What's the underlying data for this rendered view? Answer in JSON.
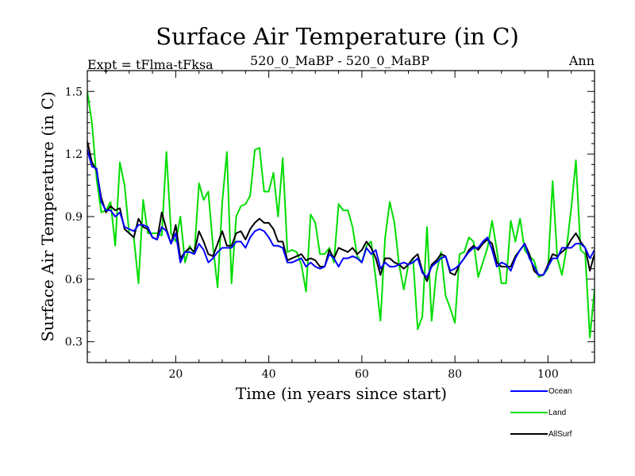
{
  "chart_data": {
    "type": "line",
    "title": "Surface Air Temperature (in C)",
    "subtitle_left": "Expt = tFlma-tFksa",
    "subtitle_center": "520_0_MaBP - 520_0_MaBP",
    "subtitle_right": "Ann",
    "xlabel": "Time (in years since start)",
    "ylabel": "Surface Air Temperature (in C)",
    "xlim": [
      1,
      110
    ],
    "ylim": [
      0.2,
      1.6
    ],
    "xticks": [
      20,
      40,
      60,
      80,
      100
    ],
    "xtick_labels": [
      "20",
      "40",
      "60",
      "80",
      "100"
    ],
    "yticks": [
      0.3,
      0.6,
      0.9,
      1.2,
      1.5
    ],
    "ytick_labels": [
      "0.3",
      "0.6",
      "0.9",
      "1.2",
      "1.5"
    ],
    "x_start": 1,
    "series": [
      {
        "name": "Ocean",
        "color": "#0000ff",
        "values": [
          1.22,
          1.14,
          1.13,
          0.97,
          0.93,
          0.93,
          0.9,
          0.92,
          0.85,
          0.84,
          0.83,
          0.86,
          0.86,
          0.85,
          0.8,
          0.79,
          0.85,
          0.83,
          0.77,
          0.82,
          0.68,
          0.73,
          0.73,
          0.72,
          0.77,
          0.74,
          0.68,
          0.7,
          0.73,
          0.75,
          0.75,
          0.75,
          0.78,
          0.78,
          0.75,
          0.8,
          0.83,
          0.84,
          0.83,
          0.8,
          0.76,
          0.76,
          0.75,
          0.68,
          0.68,
          0.69,
          0.7,
          0.66,
          0.68,
          0.66,
          0.65,
          0.66,
          0.72,
          0.7,
          0.66,
          0.7,
          0.7,
          0.71,
          0.7,
          0.68,
          0.75,
          0.72,
          0.74,
          0.65,
          0.68,
          0.66,
          0.66,
          0.67,
          0.68,
          0.67,
          0.68,
          0.7,
          0.63,
          0.61,
          0.66,
          0.68,
          0.7,
          0.71,
          0.64,
          0.65,
          0.67,
          0.7,
          0.73,
          0.75,
          0.75,
          0.78,
          0.8,
          0.74,
          0.66,
          0.68,
          0.67,
          0.64,
          0.7,
          0.74,
          0.77,
          0.7,
          0.66,
          0.62,
          0.62,
          0.66,
          0.7,
          0.7,
          0.75,
          0.75,
          0.75,
          0.77,
          0.77,
          0.75,
          0.7,
          0.74
        ]
      },
      {
        "name": "Land",
        "color": "#00dd00",
        "values": [
          1.5,
          1.35,
          1.08,
          0.92,
          0.93,
          0.97,
          0.76,
          1.16,
          1.05,
          0.82,
          0.8,
          0.58,
          0.98,
          0.82,
          0.82,
          0.82,
          0.81,
          1.21,
          0.82,
          0.78,
          0.9,
          0.68,
          0.76,
          0.72,
          1.06,
          0.98,
          1.02,
          0.76,
          0.56,
          0.97,
          1.21,
          0.58,
          0.9,
          0.95,
          0.96,
          1.0,
          1.22,
          1.23,
          1.02,
          1.02,
          1.11,
          0.9,
          1.18,
          0.73,
          0.74,
          0.73,
          0.67,
          0.54,
          0.91,
          0.87,
          0.72,
          0.72,
          0.75,
          0.68,
          0.96,
          0.93,
          0.93,
          0.85,
          0.71,
          0.68,
          0.76,
          0.78,
          0.6,
          0.4,
          0.8,
          0.97,
          0.87,
          0.67,
          0.55,
          0.67,
          0.7,
          0.36,
          0.42,
          0.85,
          0.4,
          0.63,
          0.73,
          0.52,
          0.46,
          0.39,
          0.72,
          0.73,
          0.8,
          0.78,
          0.61,
          0.68,
          0.75,
          0.88,
          0.74,
          0.58,
          0.58,
          0.88,
          0.78,
          0.89,
          0.74,
          0.71,
          0.69,
          0.61,
          0.62,
          0.65,
          1.07,
          0.7,
          0.62,
          0.75,
          0.94,
          1.17,
          0.74,
          0.72,
          0.32,
          0.55
        ]
      },
      {
        "name": "AllSurf",
        "color": "#000000",
        "values": [
          1.26,
          1.16,
          1.12,
          0.99,
          0.92,
          0.95,
          0.93,
          0.94,
          0.84,
          0.82,
          0.8,
          0.89,
          0.85,
          0.84,
          0.8,
          0.79,
          0.92,
          0.84,
          0.77,
          0.86,
          0.7,
          0.73,
          0.75,
          0.73,
          0.83,
          0.78,
          0.72,
          0.71,
          0.77,
          0.83,
          0.76,
          0.76,
          0.82,
          0.83,
          0.79,
          0.84,
          0.87,
          0.89,
          0.87,
          0.87,
          0.84,
          0.78,
          0.78,
          0.69,
          0.7,
          0.71,
          0.72,
          0.69,
          0.7,
          0.69,
          0.66,
          0.66,
          0.74,
          0.7,
          0.75,
          0.74,
          0.73,
          0.75,
          0.72,
          0.74,
          0.78,
          0.75,
          0.7,
          0.62,
          0.7,
          0.7,
          0.68,
          0.67,
          0.65,
          0.67,
          0.7,
          0.72,
          0.64,
          0.59,
          0.67,
          0.69,
          0.72,
          0.71,
          0.63,
          0.62,
          0.67,
          0.7,
          0.74,
          0.76,
          0.74,
          0.77,
          0.79,
          0.77,
          0.68,
          0.66,
          0.66,
          0.66,
          0.71,
          0.74,
          0.77,
          0.72,
          0.64,
          0.62,
          0.62,
          0.67,
          0.72,
          0.71,
          0.73,
          0.75,
          0.79,
          0.82,
          0.78,
          0.75,
          0.64,
          0.72
        ]
      }
    ]
  }
}
